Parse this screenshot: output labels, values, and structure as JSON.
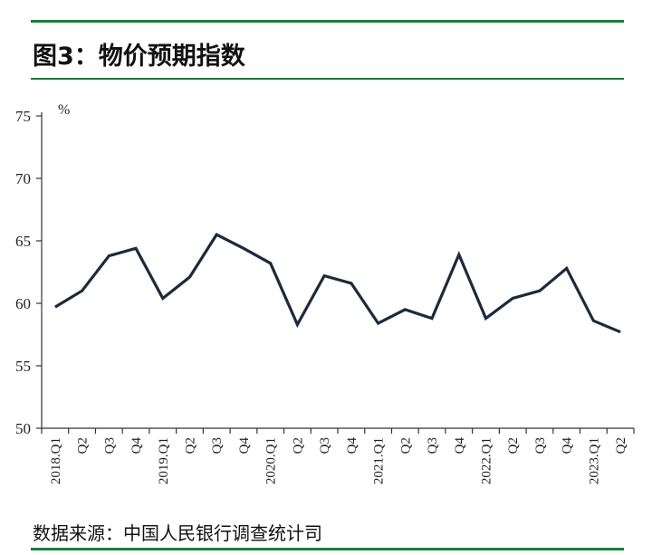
{
  "title": "图3：物价预期指数",
  "source": "数据来源：中国人民银行调查统计司",
  "chart_data": {
    "type": "line",
    "unit": "%",
    "ylim": [
      50,
      75
    ],
    "yticks": [
      50,
      55,
      60,
      65,
      70,
      75
    ],
    "categories": [
      "2018.Q1",
      "Q2",
      "Q3",
      "Q4",
      "2019.Q1",
      "Q2",
      "Q3",
      "Q4",
      "2020.Q1",
      "Q2",
      "Q3",
      "Q4",
      "2021.Q1",
      "Q2",
      "Q3",
      "Q4",
      "2022.Q1",
      "Q2",
      "Q3",
      "Q4",
      "2023.Q1",
      "Q2"
    ],
    "series": [
      {
        "values": [
          59.7,
          61.0,
          63.8,
          64.4,
          60.4,
          62.1,
          65.5,
          64.4,
          63.2,
          58.3,
          62.2,
          61.6,
          58.4,
          59.5,
          58.8,
          63.9,
          58.8,
          60.4,
          61.0,
          62.8,
          58.6,
          57.7
        ]
      }
    ],
    "line_color": "#1c2a3a",
    "grid": false
  }
}
